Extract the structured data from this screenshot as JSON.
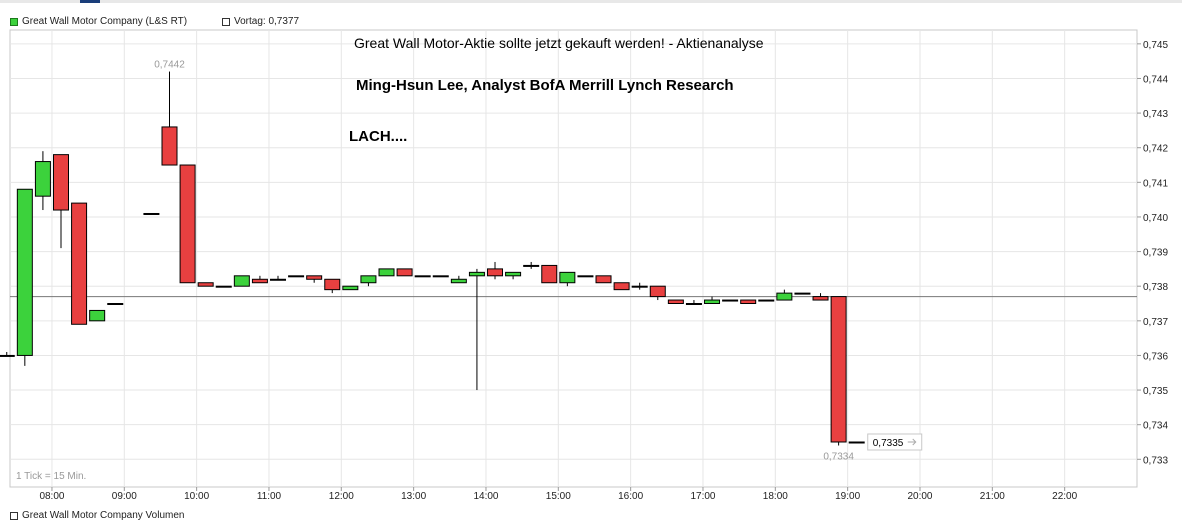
{
  "legend": {
    "series_label": "Great Wall Motor Company (L&S RT)",
    "prev_close_label": "Vortag: 0,7377",
    "series_color": "#3cd23c",
    "prev_close_color": "#ffffff"
  },
  "annotations": {
    "headline": "Great Wall Motor-Aktie sollte jetzt gekauft werden! - Aktienanalyse",
    "author": "Ming-Hsun Lee, Analyst BofA Merrill Lynch Research",
    "comment": "LACH...."
  },
  "tick_note": "1 Tick = 15 Min.",
  "volume_legend": "Great Wall Motor Company Volumen",
  "chart_data": {
    "type": "candlestick",
    "title": "",
    "xlabel": "",
    "ylabel": "",
    "ylim": [
      0.7322,
      0.7454
    ],
    "y_ticks": [
      "0,745",
      "0,744",
      "0,743",
      "0,742",
      "0,741",
      "0,740",
      "0,739",
      "0,738",
      "0,737",
      "0,736",
      "0,735",
      "0,734",
      "0,733"
    ],
    "x_ticks": [
      "08:00",
      "09:00",
      "10:00",
      "11:00",
      "12:00",
      "13:00",
      "14:00",
      "15:00",
      "16:00",
      "17:00",
      "18:00",
      "19:00",
      "20:00",
      "21:00",
      "22:00"
    ],
    "x_range_hours": [
      7.42,
      23.0
    ],
    "grid": true,
    "prev_close": 0.7377,
    "high_label": "0,7442",
    "low_label": "0,7334",
    "last_label": "0,7335",
    "up_color": "#3cd23c",
    "down_color": "#e84040",
    "candles": [
      {
        "t": "07:30",
        "o": 0.736,
        "h": 0.7361,
        "l": 0.736,
        "c": 0.736
      },
      {
        "t": "07:45",
        "o": 0.736,
        "h": 0.7408,
        "l": 0.7357,
        "c": 0.7408
      },
      {
        "t": "08:00",
        "o": 0.7406,
        "h": 0.7419,
        "l": 0.7402,
        "c": 0.7416
      },
      {
        "t": "08:15",
        "o": 0.7418,
        "h": 0.7418,
        "l": 0.7391,
        "c": 0.7402
      },
      {
        "t": "08:30",
        "o": 0.7404,
        "h": 0.7404,
        "l": 0.7369,
        "c": 0.7369
      },
      {
        "t": "08:45",
        "o": 0.737,
        "h": 0.7373,
        "l": 0.737,
        "c": 0.7373
      },
      {
        "t": "09:00",
        "o": 0.7375,
        "h": 0.7375,
        "l": 0.7375,
        "c": 0.7375
      },
      {
        "t": "09:30",
        "o": 0.7401,
        "h": 0.7401,
        "l": 0.7401,
        "c": 0.7401
      },
      {
        "t": "09:45",
        "o": 0.7426,
        "h": 0.7442,
        "l": 0.7415,
        "c": 0.7415
      },
      {
        "t": "10:00",
        "o": 0.7415,
        "h": 0.7415,
        "l": 0.7381,
        "c": 0.7381
      },
      {
        "t": "10:15",
        "o": 0.7381,
        "h": 0.7381,
        "l": 0.738,
        "c": 0.738
      },
      {
        "t": "10:30",
        "o": 0.738,
        "h": 0.738,
        "l": 0.738,
        "c": 0.738
      },
      {
        "t": "10:45",
        "o": 0.738,
        "h": 0.7383,
        "l": 0.738,
        "c": 0.7383
      },
      {
        "t": "11:00",
        "o": 0.7382,
        "h": 0.7383,
        "l": 0.7381,
        "c": 0.7381
      },
      {
        "t": "11:15",
        "o": 0.7382,
        "h": 0.7383,
        "l": 0.7382,
        "c": 0.7382
      },
      {
        "t": "11:30",
        "o": 0.7383,
        "h": 0.7383,
        "l": 0.7383,
        "c": 0.7383
      },
      {
        "t": "11:45",
        "o": 0.7383,
        "h": 0.7383,
        "l": 0.7381,
        "c": 0.7382
      },
      {
        "t": "12:00",
        "o": 0.7382,
        "h": 0.7382,
        "l": 0.7378,
        "c": 0.7379
      },
      {
        "t": "12:15",
        "o": 0.7379,
        "h": 0.738,
        "l": 0.7379,
        "c": 0.738
      },
      {
        "t": "12:30",
        "o": 0.7381,
        "h": 0.7383,
        "l": 0.738,
        "c": 0.7383
      },
      {
        "t": "12:45",
        "o": 0.7383,
        "h": 0.7385,
        "l": 0.7383,
        "c": 0.7385
      },
      {
        "t": "13:00",
        "o": 0.7385,
        "h": 0.7385,
        "l": 0.7383,
        "c": 0.7383
      },
      {
        "t": "13:15",
        "o": 0.7383,
        "h": 0.7383,
        "l": 0.7383,
        "c": 0.7383
      },
      {
        "t": "13:30",
        "o": 0.7383,
        "h": 0.7383,
        "l": 0.7383,
        "c": 0.7383
      },
      {
        "t": "13:45",
        "o": 0.7381,
        "h": 0.7383,
        "l": 0.7381,
        "c": 0.7382
      },
      {
        "t": "14:00",
        "o": 0.7383,
        "h": 0.7385,
        "l": 0.735,
        "c": 0.7384
      },
      {
        "t": "14:15",
        "o": 0.7385,
        "h": 0.7387,
        "l": 0.7382,
        "c": 0.7383
      },
      {
        "t": "14:30",
        "o": 0.7383,
        "h": 0.7384,
        "l": 0.7382,
        "c": 0.7384
      },
      {
        "t": "14:45",
        "o": 0.7386,
        "h": 0.7387,
        "l": 0.7385,
        "c": 0.7386
      },
      {
        "t": "15:00",
        "o": 0.7386,
        "h": 0.7386,
        "l": 0.7381,
        "c": 0.7381
      },
      {
        "t": "15:15",
        "o": 0.7381,
        "h": 0.7384,
        "l": 0.738,
        "c": 0.7384
      },
      {
        "t": "15:30",
        "o": 0.7383,
        "h": 0.7383,
        "l": 0.7383,
        "c": 0.7383
      },
      {
        "t": "15:45",
        "o": 0.7383,
        "h": 0.7383,
        "l": 0.7381,
        "c": 0.7381
      },
      {
        "t": "16:00",
        "o": 0.7381,
        "h": 0.7381,
        "l": 0.7379,
        "c": 0.7379
      },
      {
        "t": "16:15",
        "o": 0.738,
        "h": 0.7381,
        "l": 0.7379,
        "c": 0.738
      },
      {
        "t": "16:30",
        "o": 0.738,
        "h": 0.738,
        "l": 0.7376,
        "c": 0.7377
      },
      {
        "t": "16:45",
        "o": 0.7376,
        "h": 0.7376,
        "l": 0.7375,
        "c": 0.7375
      },
      {
        "t": "17:00",
        "o": 0.7375,
        "h": 0.7376,
        "l": 0.7375,
        "c": 0.7375
      },
      {
        "t": "17:15",
        "o": 0.7375,
        "h": 0.7377,
        "l": 0.7375,
        "c": 0.7376
      },
      {
        "t": "17:30",
        "o": 0.7376,
        "h": 0.7376,
        "l": 0.7376,
        "c": 0.7376
      },
      {
        "t": "17:45",
        "o": 0.7376,
        "h": 0.7376,
        "l": 0.7375,
        "c": 0.7375
      },
      {
        "t": "18:00",
        "o": 0.7376,
        "h": 0.7376,
        "l": 0.7376,
        "c": 0.7376
      },
      {
        "t": "18:15",
        "o": 0.7376,
        "h": 0.7379,
        "l": 0.7376,
        "c": 0.7378
      },
      {
        "t": "18:30",
        "o": 0.7378,
        "h": 0.7378,
        "l": 0.7378,
        "c": 0.7378
      },
      {
        "t": "18:45",
        "o": 0.7377,
        "h": 0.7378,
        "l": 0.7376,
        "c": 0.7376
      },
      {
        "t": "19:00",
        "o": 0.7377,
        "h": 0.7377,
        "l": 0.7334,
        "c": 0.7335
      },
      {
        "t": "19:15",
        "o": 0.7335,
        "h": 0.7335,
        "l": 0.7335,
        "c": 0.7335
      }
    ]
  }
}
